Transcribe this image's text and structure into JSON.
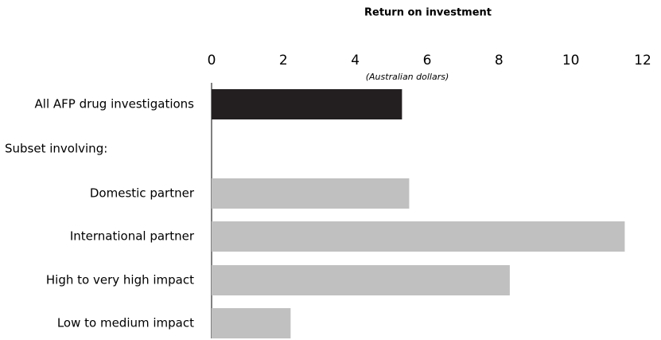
{
  "chart_data": {
    "type": "bar",
    "orientation": "horizontal",
    "title": "Return on investment",
    "subtitle": "(Australian dollars)",
    "categories": [
      "All AFP drug investigations",
      "Subset involving:",
      "Domestic partner",
      "International partner",
      "High to very high impact",
      "Low to medium impact"
    ],
    "values": [
      5.3,
      null,
      5.5,
      11.5,
      8.3,
      2.2
    ],
    "colors": [
      "#231f20",
      null,
      "#c0c0c0",
      "#c0c0c0",
      "#c0c0c0",
      "#c0c0c0"
    ],
    "xlim": [
      0,
      12
    ],
    "xticks": [
      0,
      2,
      4,
      6,
      8,
      10,
      12
    ],
    "grid": false
  }
}
